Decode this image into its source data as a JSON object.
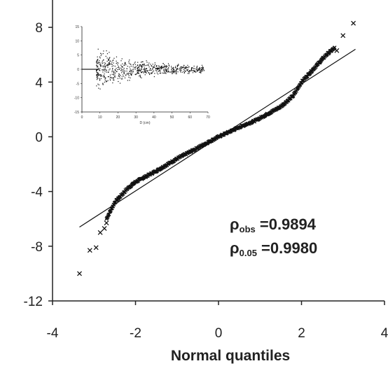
{
  "chart_data": [
    {
      "type": "scatter",
      "title": "",
      "xlabel": "Normal quantiles",
      "ylabel": "",
      "xlim": [
        -4,
        4
      ],
      "ylim": [
        -12,
        10
      ],
      "xticks": [
        "-4",
        "-2",
        "0",
        "2",
        "4"
      ],
      "yticks": [
        "-12",
        "-8",
        "-4",
        "0",
        "4",
        "8"
      ],
      "reference_line": {
        "x": [
          -3.35,
          3.3
        ],
        "y": [
          -6.6,
          6.4
        ]
      },
      "annotations": [
        {
          "symbol": "ρ",
          "sub": "obs",
          "text": " =0.9894"
        },
        {
          "symbol": "ρ",
          "sub": "0.05",
          "text": " =0.9980"
        }
      ],
      "outliers": {
        "x": [
          -3.35,
          -3.1,
          -2.95,
          -2.85,
          -2.75,
          -2.7,
          2.85,
          3.0,
          3.25
        ],
        "y": [
          -10.0,
          -8.3,
          -8.1,
          -7.0,
          -6.7,
          -6.3,
          6.3,
          7.4,
          8.3
        ]
      },
      "qq_curve": {
        "x": [
          -2.7,
          -2.5,
          -2.2,
          -2.0,
          -1.5,
          -1.0,
          -0.5,
          0.0,
          0.5,
          0.9,
          1.2,
          1.5,
          1.8,
          2.0,
          2.3,
          2.6,
          2.8
        ],
        "y": [
          -6.0,
          -4.8,
          -3.8,
          -3.3,
          -2.5,
          -1.6,
          -0.8,
          0.0,
          0.7,
          1.2,
          1.7,
          2.2,
          3.0,
          4.0,
          5.0,
          6.0,
          6.5
        ]
      },
      "grid": false,
      "legend": "none"
    },
    {
      "type": "scatter",
      "title": "",
      "xlabel": "D (cm)",
      "ylabel": "",
      "xlim": [
        0,
        70
      ],
      "ylim": [
        -15,
        15
      ],
      "xticks": [
        "0",
        "10",
        "20",
        "30",
        "40",
        "50",
        "60",
        "70"
      ],
      "yticks": [
        "-15",
        "-10",
        "-5",
        "0",
        "5",
        "10",
        "15"
      ],
      "residual_band": {
        "x": [
          8,
          10,
          15,
          20,
          30,
          40,
          50,
          60,
          68
        ],
        "spread": [
          7,
          9,
          8,
          6,
          4.5,
          3.5,
          2.5,
          2.0,
          1.5
        ]
      },
      "grid": false,
      "legend": "none"
    }
  ]
}
